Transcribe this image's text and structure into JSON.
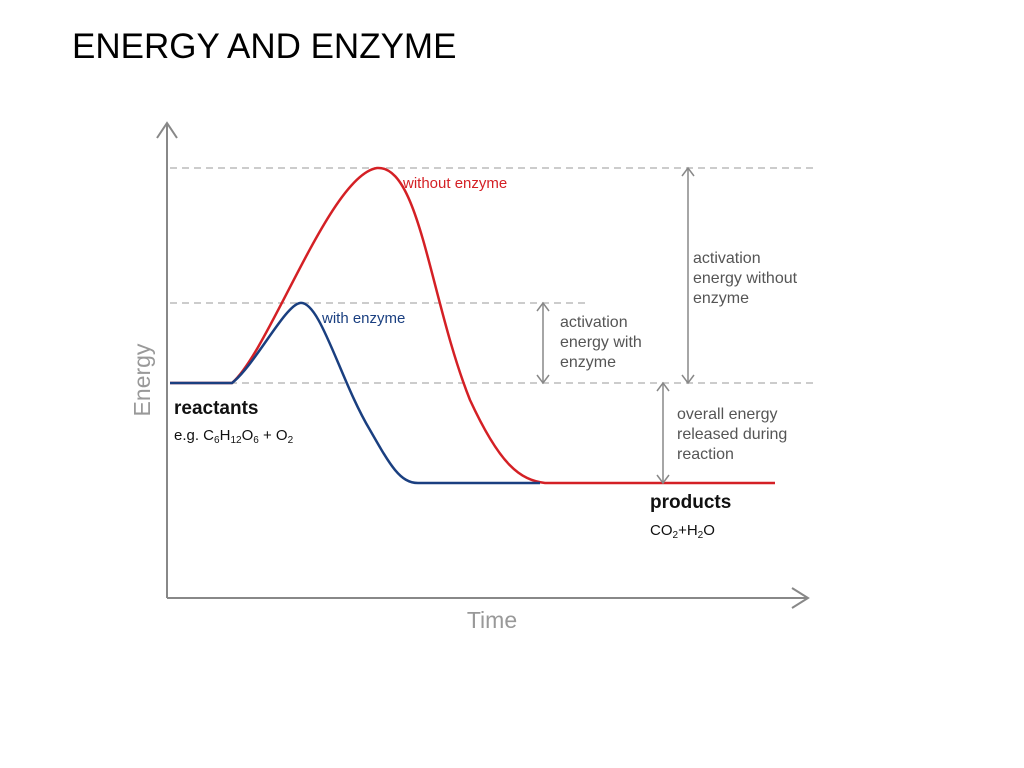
{
  "header": {
    "title": "ENERGY AND ENZYME"
  },
  "diagram": {
    "y_axis_label": "Energy",
    "x_axis_label": "Time",
    "curve_without_enzyme": "without enzyme",
    "curve_with_enzyme": "with enzyme",
    "activation_without": [
      "activation",
      "energy without",
      "enzyme"
    ],
    "activation_with": [
      "activation",
      "energy with",
      "enzyme"
    ],
    "overall_energy": [
      "overall energy",
      "released during",
      "reaction"
    ],
    "reactants": {
      "label": "reactants",
      "formula": [
        "e.g. C",
        "6",
        "H",
        "12",
        "O",
        "6",
        " + O",
        "2"
      ]
    },
    "products": {
      "label": "products",
      "formula": [
        "CO",
        "2",
        "+H",
        "2",
        "O"
      ]
    }
  }
}
